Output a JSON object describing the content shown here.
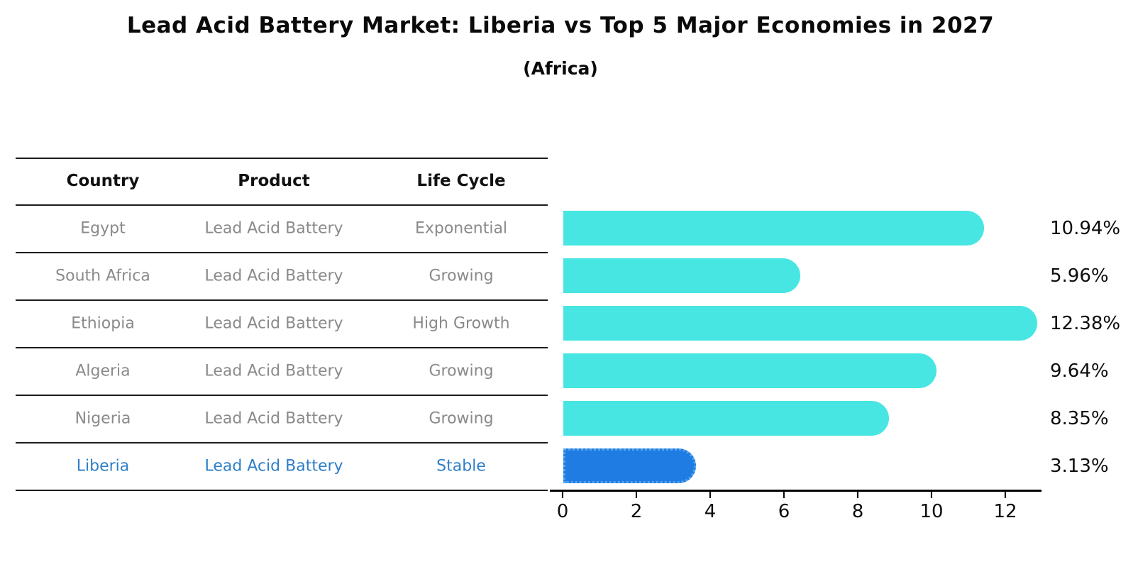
{
  "title": "Lead Acid Battery Market: Liberia vs Top 5 Major Economies in 2027",
  "subtitle": "(Africa)",
  "table": {
    "headers": [
      "Country",
      "Product",
      "Life Cycle"
    ],
    "rows": [
      {
        "country": "Egypt",
        "product": "Lead Acid Battery",
        "life_cycle": "Exponential",
        "highlight": false
      },
      {
        "country": "South Africa",
        "product": "Lead Acid Battery",
        "life_cycle": "Growing",
        "highlight": false
      },
      {
        "country": "Ethiopia",
        "product": "Lead Acid Battery",
        "life_cycle": "High Growth",
        "highlight": false
      },
      {
        "country": "Algeria",
        "product": "Lead Acid Battery",
        "life_cycle": "Growing",
        "highlight": false
      },
      {
        "country": "Nigeria",
        "product": "Lead Acid Battery",
        "life_cycle": "Growing",
        "highlight": false
      },
      {
        "country": "Liberia",
        "product": "Lead Acid Battery",
        "life_cycle": "Stable",
        "highlight": true
      }
    ]
  },
  "chart_data": {
    "type": "bar",
    "orientation": "horizontal",
    "title": "Lead Acid Battery Market: Liberia vs Top 5 Major Economies in 2027 (Africa)",
    "categories": [
      "Egypt",
      "South Africa",
      "Ethiopia",
      "Algeria",
      "Nigeria",
      "Liberia"
    ],
    "values": [
      10.94,
      5.96,
      12.38,
      9.64,
      8.35,
      3.13
    ],
    "value_labels": [
      "10.94%",
      "5.96%",
      "12.38%",
      "9.64%",
      "8.35%",
      "3.13%"
    ],
    "highlight_index": 5,
    "xticks": [
      0,
      2,
      4,
      6,
      8,
      10,
      12
    ],
    "xtick_labels": [
      "0",
      "2",
      "4",
      "6",
      "8",
      "10",
      "12"
    ],
    "xlim": [
      0,
      12.96
    ],
    "grid": false,
    "legend": "none"
  },
  "colors": {
    "bar": "#47E6E2",
    "highlight_bar": "#1E7CE3",
    "highlight_bar_edge": "#56A3EE",
    "highlight_row_text": "#2E7EC7",
    "row_text": "#8a8a8a",
    "header_text": "#111111",
    "label_text": "#0d0d0d",
    "line": "#1c1c1c"
  }
}
